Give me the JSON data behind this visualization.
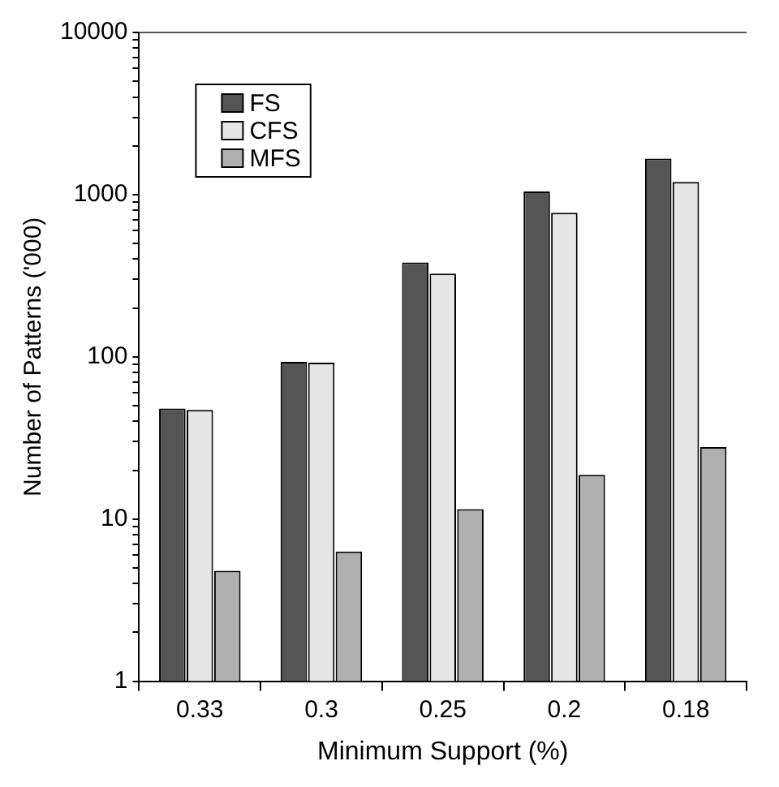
{
  "chart_data": {
    "type": "bar",
    "xlabel": "Minimum Support (%)",
    "ylabel": "Number of Patterns ('000)",
    "categories": [
      "0.33",
      "0.3",
      "0.25",
      "0.2",
      "0.18"
    ],
    "series": [
      {
        "name": "FS",
        "color": "#555555",
        "values": [
          48,
          93,
          382,
          1047,
          1668
        ]
      },
      {
        "name": "CFS",
        "color": "#e6e6e6",
        "values": [
          47,
          92,
          326,
          774,
          1197
        ]
      },
      {
        "name": "MFS",
        "color": "#b0b0b0",
        "values": [
          4.8,
          6.3,
          11.5,
          18.7,
          27.8
        ]
      }
    ],
    "log": "y",
    "ylim": [
      1,
      10000
    ],
    "yticks": [
      1,
      {
        "value": 2,
        "label": null
      },
      {
        "value": 3,
        "label": null
      },
      {
        "value": 4,
        "label": null
      },
      {
        "value": 5,
        "label": null
      },
      {
        "value": 6,
        "label": null
      },
      {
        "value": 7,
        "label": null
      },
      {
        "value": 8,
        "label": null
      },
      {
        "value": 9,
        "label": null
      },
      10,
      {
        "value": 20,
        "label": null
      },
      {
        "value": 30,
        "label": null
      },
      {
        "value": 40,
        "label": null
      },
      {
        "value": 50,
        "label": null
      },
      {
        "value": 60,
        "label": null
      },
      {
        "value": 70,
        "label": null
      },
      {
        "value": 80,
        "label": null
      },
      {
        "value": 90,
        "label": null
      },
      100,
      {
        "value": 200,
        "label": null
      },
      {
        "value": 300,
        "label": null
      },
      {
        "value": 400,
        "label": null
      },
      {
        "value": 500,
        "label": null
      },
      {
        "value": 600,
        "label": null
      },
      {
        "value": 700,
        "label": null
      },
      {
        "value": 800,
        "label": null
      },
      {
        "value": 900,
        "label": null
      },
      1000,
      {
        "value": 2000,
        "label": null
      },
      {
        "value": 3000,
        "label": null
      },
      {
        "value": 4000,
        "label": null
      },
      {
        "value": 5000,
        "label": null
      },
      {
        "value": 6000,
        "label": null
      },
      {
        "value": 7000,
        "label": null
      },
      {
        "value": 8000,
        "label": null
      },
      {
        "value": 9000,
        "label": null
      },
      10000
    ],
    "grid": false,
    "legend": "top left"
  }
}
